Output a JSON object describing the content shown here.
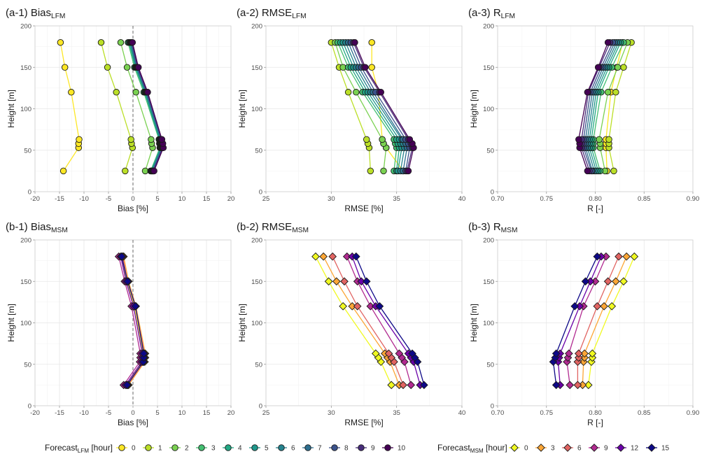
{
  "chart_data": [
    {
      "id": "a1",
      "type": "line",
      "title": "(a-1) Bias",
      "title_sub": "LFM",
      "xlabel": "Bias [%]",
      "ylabel": "Height [m]",
      "xlim": [
        -20,
        20
      ],
      "ylim": [
        0,
        200
      ],
      "xticks": [
        -20,
        -15,
        -10,
        -5,
        0,
        5,
        10,
        15,
        20
      ],
      "xtick_labels": [
        "-20",
        "-15",
        "-10",
        "-5",
        "0",
        "5",
        "10",
        "15",
        "20"
      ],
      "yticks": [
        0,
        50,
        100,
        150,
        200
      ],
      "ytick_labels": [
        "0",
        "50",
        "100",
        "150",
        "200"
      ],
      "zero_line": true,
      "group": "LFM",
      "y": [
        25,
        53,
        58,
        63,
        120,
        150,
        180
      ],
      "series": [
        {
          "name": "0",
          "values": [
            -14.2,
            -11.1,
            -11.1,
            -11.0,
            -12.6,
            -13.9,
            -14.8
          ]
        },
        {
          "name": "1",
          "values": [
            -1.6,
            -0.1,
            -0.3,
            -0.4,
            -3.4,
            -5.2,
            -6.5
          ]
        },
        {
          "name": "2",
          "values": [
            2.5,
            4.0,
            3.8,
            3.7,
            0.6,
            -1.2,
            -2.5
          ]
        },
        {
          "name": "3",
          "values": [
            3.6,
            5.5,
            5.4,
            5.3,
            2.2,
            0.3,
            -1.0
          ]
        },
        {
          "name": "4",
          "values": [
            3.7,
            5.6,
            5.5,
            5.4,
            2.4,
            0.5,
            -0.8
          ]
        },
        {
          "name": "5",
          "values": [
            3.8,
            5.7,
            5.6,
            5.5,
            2.5,
            0.6,
            -0.6
          ]
        },
        {
          "name": "6",
          "values": [
            3.9,
            5.8,
            5.7,
            5.6,
            2.6,
            0.7,
            -0.5
          ]
        },
        {
          "name": "7",
          "values": [
            4.0,
            5.9,
            5.8,
            5.7,
            2.7,
            0.8,
            -0.4
          ]
        },
        {
          "name": "8",
          "values": [
            4.1,
            6.0,
            5.9,
            5.8,
            2.8,
            0.9,
            -0.3
          ]
        },
        {
          "name": "9",
          "values": [
            4.2,
            6.1,
            6.0,
            5.9,
            2.9,
            1.0,
            -0.2
          ]
        },
        {
          "name": "10",
          "values": [
            4.3,
            6.2,
            6.1,
            5.9,
            3.0,
            1.1,
            -0.1
          ]
        }
      ]
    },
    {
      "id": "a2",
      "type": "line",
      "title": "(a-2) RMSE",
      "title_sub": "LFM",
      "xlabel": "RMSE [%]",
      "ylabel": "Height [m]",
      "xlim": [
        25,
        40
      ],
      "ylim": [
        0,
        200
      ],
      "xticks": [
        25,
        30,
        35,
        40
      ],
      "xtick_labels": [
        "25",
        "30",
        "35",
        "40"
      ],
      "yticks": [
        0,
        50,
        100,
        150,
        200
      ],
      "ytick_labels": [
        "0",
        "50",
        "100",
        "150",
        "200"
      ],
      "zero_line": false,
      "group": "LFM",
      "y": [
        25,
        53,
        58,
        63,
        120,
        150,
        180
      ],
      "series": [
        {
          "name": "0",
          "values": [
            35.5,
            34.2,
            34.0,
            33.9,
            33.6,
            33.1,
            33.1
          ]
        },
        {
          "name": "1",
          "values": [
            33.0,
            32.9,
            32.8,
            32.7,
            31.3,
            30.6,
            30.0
          ]
        },
        {
          "name": "2",
          "values": [
            34.0,
            34.2,
            34.0,
            33.9,
            31.9,
            30.9,
            30.3
          ]
        },
        {
          "name": "3",
          "values": [
            34.8,
            35.0,
            34.9,
            34.8,
            32.4,
            31.3,
            30.5
          ]
        },
        {
          "name": "4",
          "values": [
            35.0,
            35.2,
            35.1,
            35.0,
            32.6,
            31.5,
            30.7
          ]
        },
        {
          "name": "5",
          "values": [
            35.1,
            35.4,
            35.3,
            35.2,
            32.8,
            31.7,
            30.9
          ]
        },
        {
          "name": "6",
          "values": [
            35.3,
            35.6,
            35.5,
            35.4,
            33.0,
            31.9,
            31.1
          ]
        },
        {
          "name": "7",
          "values": [
            35.5,
            35.8,
            35.7,
            35.5,
            33.2,
            32.1,
            31.3
          ]
        },
        {
          "name": "8",
          "values": [
            35.7,
            36.0,
            35.9,
            35.7,
            33.4,
            32.3,
            31.5
          ]
        },
        {
          "name": "9",
          "values": [
            35.8,
            36.2,
            36.1,
            35.9,
            33.7,
            32.5,
            31.7
          ]
        },
        {
          "name": "10",
          "values": [
            35.9,
            36.3,
            36.2,
            36.0,
            33.8,
            32.6,
            31.8
          ]
        }
      ]
    },
    {
      "id": "a3",
      "type": "line",
      "title": "(a-3) R",
      "title_sub": "LFM",
      "xlabel": "R [-]",
      "ylabel": "Height [m]",
      "xlim": [
        0.7,
        0.9
      ],
      "ylim": [
        0,
        200
      ],
      "xticks": [
        0.7,
        0.75,
        0.8,
        0.85,
        0.9
      ],
      "xtick_labels": [
        "0.70",
        "0.75",
        "0.80",
        "0.85",
        "0.90"
      ],
      "yticks": [
        0,
        50,
        100,
        150,
        200
      ],
      "ytick_labels": [
        "0",
        "50",
        "100",
        "150",
        "200"
      ],
      "zero_line": false,
      "group": "LFM",
      "y": [
        25,
        53,
        58,
        63,
        120,
        150,
        180
      ],
      "series": [
        {
          "name": "0",
          "values": [
            0.812,
            0.811,
            0.811,
            0.811,
            0.816,
            0.822,
            0.828
          ]
        },
        {
          "name": "1",
          "values": [
            0.819,
            0.814,
            0.814,
            0.814,
            0.821,
            0.829,
            0.837
          ]
        },
        {
          "name": "2",
          "values": [
            0.81,
            0.805,
            0.805,
            0.804,
            0.813,
            0.823,
            0.833
          ]
        },
        {
          "name": "3",
          "values": [
            0.805,
            0.798,
            0.798,
            0.798,
            0.806,
            0.817,
            0.829
          ]
        },
        {
          "name": "4",
          "values": [
            0.803,
            0.796,
            0.796,
            0.796,
            0.803,
            0.814,
            0.826
          ]
        },
        {
          "name": "5",
          "values": [
            0.801,
            0.794,
            0.794,
            0.794,
            0.801,
            0.812,
            0.824
          ]
        },
        {
          "name": "6",
          "values": [
            0.799,
            0.792,
            0.792,
            0.792,
            0.799,
            0.81,
            0.822
          ]
        },
        {
          "name": "7",
          "values": [
            0.797,
            0.79,
            0.79,
            0.79,
            0.797,
            0.808,
            0.82
          ]
        },
        {
          "name": "8",
          "values": [
            0.796,
            0.788,
            0.788,
            0.788,
            0.795,
            0.806,
            0.818
          ]
        },
        {
          "name": "9",
          "values": [
            0.794,
            0.786,
            0.786,
            0.786,
            0.793,
            0.804,
            0.815
          ]
        },
        {
          "name": "10",
          "values": [
            0.792,
            0.784,
            0.784,
            0.783,
            0.792,
            0.803,
            0.813
          ]
        }
      ]
    },
    {
      "id": "b1",
      "type": "line",
      "title": "(b-1) Bias",
      "title_sub": "MSM",
      "xlabel": "Bias [%]",
      "ylabel": "Height [m]",
      "xlim": [
        -20,
        20
      ],
      "ylim": [
        0,
        200
      ],
      "xticks": [
        -20,
        -15,
        -10,
        -5,
        0,
        5,
        10,
        15,
        20
      ],
      "xtick_labels": [
        "-20",
        "-15",
        "-10",
        "-5",
        "0",
        "5",
        "10",
        "15",
        "20"
      ],
      "yticks": [
        0,
        50,
        100,
        150,
        200
      ],
      "ytick_labels": [
        "0",
        "50",
        "100",
        "150",
        "200"
      ],
      "zero_line": true,
      "group": "MSM",
      "y": [
        25,
        53,
        58,
        63,
        120,
        150,
        180
      ],
      "series": [
        {
          "name": "0",
          "values": [
            -1.3,
            2.0,
            2.1,
            2.1,
            0.3,
            -1.3,
            -2.3
          ]
        },
        {
          "name": "3",
          "values": [
            -0.9,
            2.4,
            2.5,
            2.5,
            0.6,
            -0.9,
            -1.9
          ]
        },
        {
          "name": "6",
          "values": [
            -1.1,
            2.2,
            2.3,
            2.3,
            0.5,
            -1.1,
            -2.1
          ]
        },
        {
          "name": "9",
          "values": [
            -1.9,
            1.4,
            1.5,
            1.5,
            -0.3,
            -1.7,
            -2.9
          ]
        },
        {
          "name": "12",
          "values": [
            -1.5,
            1.8,
            1.9,
            1.9,
            0.1,
            -1.4,
            -2.5
          ]
        },
        {
          "name": "15",
          "values": [
            -1.2,
            2.1,
            2.2,
            2.2,
            0.5,
            -1.1,
            -2.3
          ]
        }
      ]
    },
    {
      "id": "b2",
      "type": "line",
      "title": "(b-2) RMSE",
      "title_sub": "MSM",
      "xlabel": "RMSE [%]",
      "ylabel": "Height [m]",
      "xlim": [
        25,
        40
      ],
      "ylim": [
        0,
        200
      ],
      "xticks": [
        25,
        30,
        35,
        40
      ],
      "xtick_labels": [
        "25",
        "30",
        "35",
        "40"
      ],
      "yticks": [
        0,
        50,
        100,
        150,
        200
      ],
      "ytick_labels": [
        "0",
        "50",
        "100",
        "150",
        "200"
      ],
      "zero_line": false,
      "group": "MSM",
      "y": [
        25,
        53,
        58,
        63,
        120,
        150,
        180
      ],
      "series": [
        {
          "name": "0",
          "values": [
            34.6,
            33.8,
            33.6,
            33.4,
            30.9,
            29.8,
            28.8
          ]
        },
        {
          "name": "3",
          "values": [
            35.2,
            34.5,
            34.3,
            34.1,
            31.6,
            30.4,
            29.4
          ]
        },
        {
          "name": "6",
          "values": [
            35.5,
            34.8,
            34.6,
            34.4,
            32.0,
            31.0,
            30.1
          ]
        },
        {
          "name": "9",
          "values": [
            36.1,
            35.6,
            35.4,
            35.2,
            33.0,
            32.0,
            31.2
          ]
        },
        {
          "name": "12",
          "values": [
            36.8,
            36.3,
            36.1,
            35.9,
            33.4,
            32.3,
            31.6
          ]
        },
        {
          "name": "15",
          "values": [
            37.1,
            36.6,
            36.4,
            36.2,
            33.7,
            32.7,
            31.9
          ]
        }
      ]
    },
    {
      "id": "b3",
      "type": "line",
      "title": "(b-3) R",
      "title_sub": "MSM",
      "xlabel": "R [-]",
      "ylabel": "Height [m]",
      "xlim": [
        0.7,
        0.9
      ],
      "ylim": [
        0,
        200
      ],
      "xticks": [
        0.7,
        0.75,
        0.8,
        0.85,
        0.9
      ],
      "xtick_labels": [
        "0.70",
        "0.75",
        "0.80",
        "0.85",
        "0.90"
      ],
      "yticks": [
        0,
        50,
        100,
        150,
        200
      ],
      "ytick_labels": [
        "0",
        "50",
        "100",
        "150",
        "200"
      ],
      "zero_line": false,
      "group": "MSM",
      "y": [
        25,
        53,
        58,
        63,
        120,
        150,
        180
      ],
      "series": [
        {
          "name": "0",
          "values": [
            0.793,
            0.796,
            0.797,
            0.797,
            0.817,
            0.829,
            0.84
          ]
        },
        {
          "name": "3",
          "values": [
            0.787,
            0.788,
            0.789,
            0.789,
            0.809,
            0.821,
            0.832
          ]
        },
        {
          "name": "6",
          "values": [
            0.782,
            0.782,
            0.783,
            0.783,
            0.802,
            0.813,
            0.824
          ]
        },
        {
          "name": "9",
          "values": [
            0.774,
            0.771,
            0.772,
            0.773,
            0.788,
            0.8,
            0.811
          ]
        },
        {
          "name": "12",
          "values": [
            0.764,
            0.762,
            0.763,
            0.764,
            0.784,
            0.795,
            0.806
          ]
        },
        {
          "name": "15",
          "values": [
            0.76,
            0.757,
            0.759,
            0.76,
            0.779,
            0.79,
            0.802
          ]
        }
      ]
    }
  ],
  "legends": {
    "LFM": {
      "title": "Forecast",
      "title_sub": "LFM",
      "title_unit": "[hour]",
      "shape": "circle",
      "entries": [
        {
          "label": "0",
          "color": "#FDE725"
        },
        {
          "label": "1",
          "color": "#BBDF27"
        },
        {
          "label": "2",
          "color": "#7AD151"
        },
        {
          "label": "3",
          "color": "#43BF71"
        },
        {
          "label": "4",
          "color": "#22A884"
        },
        {
          "label": "5",
          "color": "#1F978B"
        },
        {
          "label": "6",
          "color": "#25838E"
        },
        {
          "label": "7",
          "color": "#2D6E8E"
        },
        {
          "label": "8",
          "color": "#3B528B"
        },
        {
          "label": "9",
          "color": "#472C7A"
        },
        {
          "label": "10",
          "color": "#440154"
        }
      ]
    },
    "MSM": {
      "title": "Forecast",
      "title_sub": "MSM",
      "title_unit": "[hour]",
      "shape": "diamond",
      "entries": [
        {
          "label": "0",
          "color": "#F0F921"
        },
        {
          "label": "3",
          "color": "#FCA636"
        },
        {
          "label": "6",
          "color": "#E16462"
        },
        {
          "label": "9",
          "color": "#B12A90"
        },
        {
          "label": "12",
          "color": "#6A00A8"
        },
        {
          "label": "15",
          "color": "#0D0887"
        }
      ]
    }
  }
}
